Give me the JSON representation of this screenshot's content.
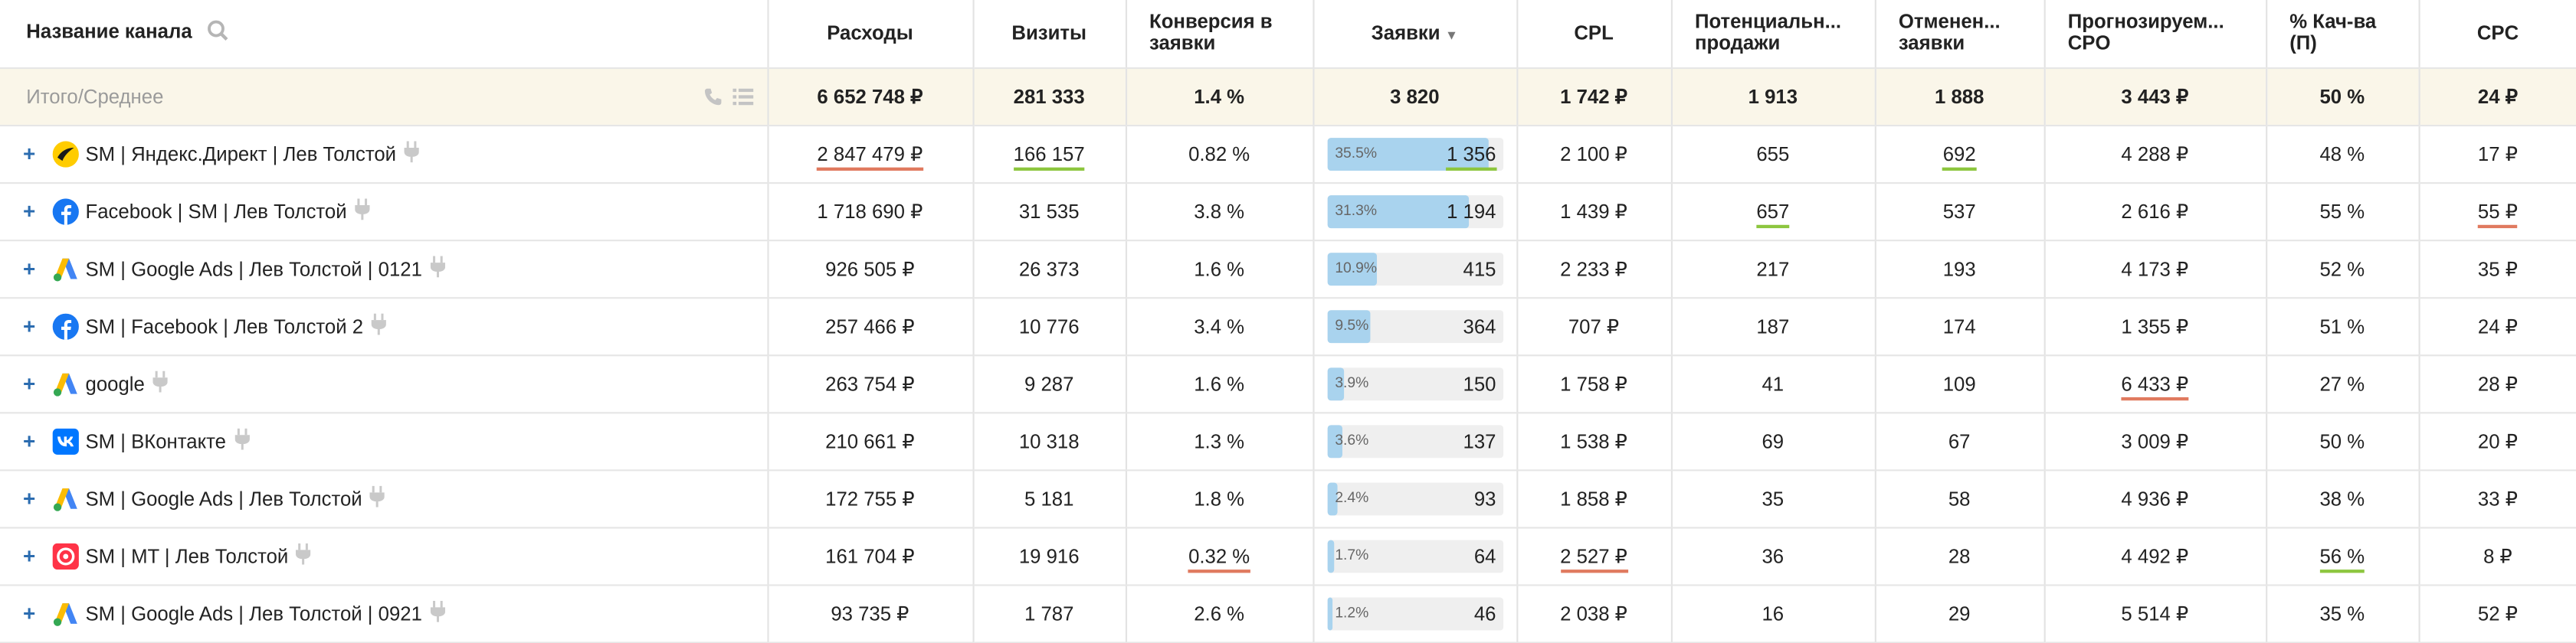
{
  "columns": {
    "name": "Название канала",
    "expenses": "Расходы",
    "visits": "Визиты",
    "conversion": [
      "Конверсия в",
      "заявки"
    ],
    "leads": "Заявки",
    "cpl": "CPL",
    "potential": [
      "Потенциальн...",
      "продажи"
    ],
    "canceled": [
      "Отменен...",
      "заявки"
    ],
    "forecast": [
      "Прогнозируем...",
      "CPO"
    ],
    "quality": [
      "% Кач-ва",
      "(П)"
    ],
    "cpc": "CPC"
  },
  "totals": {
    "label": "Итого/Среднее",
    "expenses": "6 652 748 ₽",
    "visits": "281 333",
    "conversion": "1.4 %",
    "leads": "3 820",
    "cpl": "1 742 ₽",
    "potential": "1 913",
    "canceled": "1 888",
    "forecast": "3 443 ₽",
    "quality": "50 %",
    "cpc": "24 ₽"
  },
  "rows": [
    {
      "icon": "yandex-direct-icon",
      "name": "SM | Яндекс.Директ | Лев Толстой",
      "expenses": "2 847 479 ₽",
      "visits": "166 157",
      "conversion": "0.82 %",
      "leads": "1 356",
      "leads_pct_label": "35.5%",
      "leads_share": 0.355,
      "cpl": "2 100 ₽",
      "potential": "655",
      "canceled": "692",
      "forecast": "4 288 ₽",
      "quality": "48 %",
      "cpc": "17 ₽"
    },
    {
      "icon": "facebook-icon",
      "name": "Facebook | SM | Лев Толстой",
      "expenses": "1 718 690 ₽",
      "visits": "31 535",
      "conversion": "3.8 %",
      "leads": "1 194",
      "leads_pct_label": "31.3%",
      "leads_share": 0.313,
      "cpl": "1 439 ₽",
      "potential": "657",
      "canceled": "537",
      "forecast": "2 616 ₽",
      "quality": "55 %",
      "cpc": "55 ₽"
    },
    {
      "icon": "google-ads-icon",
      "name": "SM | Google Ads | Лев Толстой | 0121",
      "expenses": "926 505 ₽",
      "visits": "26 373",
      "conversion": "1.6 %",
      "leads": "415",
      "leads_pct_label": "10.9%",
      "leads_share": 0.109,
      "cpl": "2 233 ₽",
      "potential": "217",
      "canceled": "193",
      "forecast": "4 173 ₽",
      "quality": "52 %",
      "cpc": "35 ₽"
    },
    {
      "icon": "facebook-icon",
      "name": "SM | Facebook  | Лев Толстой 2",
      "expenses": "257 466 ₽",
      "visits": "10 776",
      "conversion": "3.4 %",
      "leads": "364",
      "leads_pct_label": "9.5%",
      "leads_share": 0.095,
      "cpl": "707 ₽",
      "potential": "187",
      "canceled": "174",
      "forecast": "1 355 ₽",
      "quality": "51 %",
      "cpc": "24 ₽"
    },
    {
      "icon": "google-ads-icon",
      "name": "google",
      "expenses": "263 754 ₽",
      "visits": "9 287",
      "conversion": "1.6 %",
      "leads": "150",
      "leads_pct_label": "3.9%",
      "leads_share": 0.039,
      "cpl": "1 758 ₽",
      "potential": "41",
      "canceled": "109",
      "forecast": "6 433 ₽",
      "quality": "27 %",
      "cpc": "28 ₽"
    },
    {
      "icon": "vk-icon",
      "name": "SM | ВКонтакте",
      "expenses": "210 661 ₽",
      "visits": "10 318",
      "conversion": "1.3 %",
      "leads": "137",
      "leads_pct_label": "3.6%",
      "leads_share": 0.036,
      "cpl": "1 538 ₽",
      "potential": "69",
      "canceled": "67",
      "forecast": "3 009 ₽",
      "quality": "50 %",
      "cpc": "20 ₽"
    },
    {
      "icon": "google-ads-icon",
      "name": "SM | Google Ads | Лев Толстой",
      "expenses": "172 755 ₽",
      "visits": "5 181",
      "conversion": "1.8 %",
      "leads": "93",
      "leads_pct_label": "2.4%",
      "leads_share": 0.024,
      "cpl": "1 858 ₽",
      "potential": "35",
      "canceled": "58",
      "forecast": "4 936 ₽",
      "quality": "38 %",
      "cpc": "33 ₽"
    },
    {
      "icon": "mytarget-icon",
      "name": "SM | MT | Лев Толстой",
      "expenses": "161 704 ₽",
      "visits": "19 916",
      "conversion": "0.32 %",
      "leads": "64",
      "leads_pct_label": "1.7%",
      "leads_share": 0.017,
      "cpl": "2 527 ₽",
      "potential": "36",
      "canceled": "28",
      "forecast": "4 492 ₽",
      "quality": "56 %",
      "cpc": "8 ₽"
    },
    {
      "icon": "google-ads-icon",
      "name": "SM | Google Ads | Лев Толстой | 0921",
      "expenses": "93 735 ₽",
      "visits": "1 787",
      "conversion": "2.6 %",
      "leads": "46",
      "leads_pct_label": "1.2%",
      "leads_share": 0.012,
      "cpl": "2 038 ₽",
      "potential": "16",
      "canceled": "29",
      "forecast": "5 514 ₽",
      "quality": "35 %",
      "cpc": "52 ₽"
    }
  ],
  "highlights": {
    "underline_red": "#e07a5f",
    "underline_green": "#8dc63f",
    "bar_fill": "#a9d3ee",
    "total_row_bg": "#faf6e9"
  }
}
